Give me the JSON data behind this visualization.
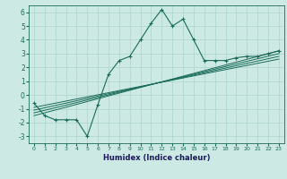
{
  "title": "",
  "xlabel": "Humidex (Indice chaleur)",
  "xlim": [
    -0.5,
    23.5
  ],
  "ylim": [
    -3.5,
    6.5
  ],
  "yticks": [
    -3,
    -2,
    -1,
    0,
    1,
    2,
    3,
    4,
    5,
    6
  ],
  "xticks": [
    0,
    1,
    2,
    3,
    4,
    5,
    6,
    7,
    8,
    9,
    10,
    11,
    12,
    13,
    14,
    15,
    16,
    17,
    18,
    19,
    20,
    21,
    22,
    23
  ],
  "background_color": "#cce9e3",
  "grid_color": "#aad4ca",
  "line_color": "#1a6b5a",
  "series1_x": [
    0,
    1,
    2,
    3,
    4,
    5,
    6,
    7,
    8,
    9,
    10,
    11,
    12,
    13,
    14,
    15,
    16,
    17,
    18,
    19,
    20,
    21,
    22,
    23
  ],
  "series1_y": [
    -0.6,
    -1.5,
    -1.8,
    -1.8,
    -1.8,
    -3.0,
    -0.7,
    1.5,
    2.5,
    2.8,
    4.0,
    5.2,
    6.2,
    5.0,
    5.5,
    4.0,
    2.5,
    2.5,
    2.5,
    2.7,
    2.8,
    2.8,
    3.0,
    3.2
  ],
  "linear_lines": [
    {
      "x": [
        0,
        23
      ],
      "y": [
        -1.5,
        3.2
      ]
    },
    {
      "x": [
        0,
        23
      ],
      "y": [
        -1.3,
        3.0
      ]
    },
    {
      "x": [
        0,
        23
      ],
      "y": [
        -1.1,
        2.8
      ]
    },
    {
      "x": [
        0,
        23
      ],
      "y": [
        -0.9,
        2.6
      ]
    }
  ]
}
